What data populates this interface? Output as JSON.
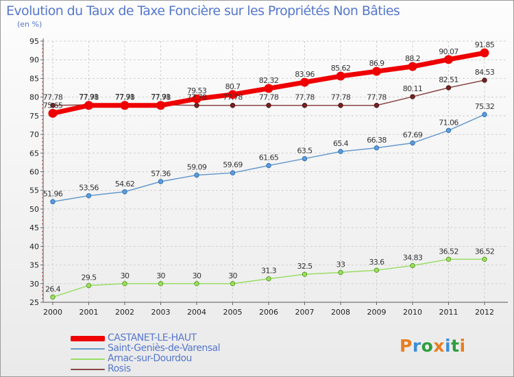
{
  "header": {
    "title": "Evolution du Taux de Taxe Foncière sur les Propriétés Non Bâties",
    "unit": "(en %)"
  },
  "logo": {
    "text": "Proxiti",
    "colors": [
      "#e67e22",
      "#3b8fd4",
      "#2e9e3e",
      "#e67e22",
      "#3b8fd4",
      "#2e9e3e",
      "#e67e22"
    ]
  },
  "chart_data": {
    "type": "line",
    "title": "Evolution du Taux de Taxe Foncière sur les Propriétés Non Bâties",
    "ylabel": "(en %)",
    "xlabel": "",
    "x": [
      "2000",
      "2001",
      "2002",
      "2003",
      "2004",
      "2005",
      "2006",
      "2007",
      "2008",
      "2009",
      "2010",
      "2011",
      "2012"
    ],
    "ylim": [
      25,
      95
    ],
    "yticks": [
      25,
      30,
      35,
      40,
      45,
      50,
      55,
      60,
      65,
      70,
      75,
      80,
      85,
      90,
      95
    ],
    "grid": true,
    "legend_position": "bottom-left",
    "series": [
      {
        "name": "CASTANET-LE-HAUT",
        "color": "#ee0000",
        "values": [
          75.65,
          77.78,
          77.78,
          77.78,
          79.53,
          80.7,
          82.32,
          83.96,
          85.62,
          86.9,
          88.2,
          90.07,
          91.85
        ],
        "labels": [
          "75.65",
          "77.78",
          "77.78",
          "77.78",
          "79.53",
          "80.7",
          "82.32",
          "83.96",
          "85.62",
          "86.9",
          "88.2",
          "90.07",
          "91.85"
        ]
      },
      {
        "name": "Saint-Geniès-de-Varensal",
        "color": "#6699cc",
        "values": [
          51.96,
          53.56,
          54.62,
          57.36,
          59.09,
          59.69,
          61.65,
          63.5,
          65.4,
          66.38,
          67.69,
          71.06,
          75.32
        ],
        "labels": [
          "51.96",
          "53.56",
          "54.62",
          "57.36",
          "59.09",
          "59.69",
          "61.65",
          "63.5",
          "65.4",
          "66.38",
          "67.69",
          "71.06",
          "75.32"
        ]
      },
      {
        "name": "Arnac-sur-Dourdou",
        "color": "#99dd66",
        "values": [
          26.4,
          29.5,
          30,
          30,
          30,
          30,
          31.3,
          32.5,
          33,
          33.6,
          34.83,
          36.52,
          36.52
        ],
        "labels": [
          "26.4",
          "29.5",
          "30",
          "30",
          "30",
          "30",
          "31.3",
          "32.5",
          "33",
          "33.6",
          "34.83",
          "36.52",
          "36.52"
        ]
      },
      {
        "name": "Rosis",
        "color": "#884444",
        "values": [
          77.78,
          77.91,
          77.91,
          77.91,
          77.78,
          77.78,
          77.78,
          77.78,
          77.78,
          77.78,
          80.11,
          82.51,
          84.53
        ],
        "labels": [
          "77.78",
          "77.91",
          "77.91",
          "77.91",
          "77.78",
          "77.78",
          "77.78",
          "77.78",
          "77.78",
          "77.78",
          "80.11",
          "82.51",
          "84.53"
        ]
      }
    ]
  }
}
